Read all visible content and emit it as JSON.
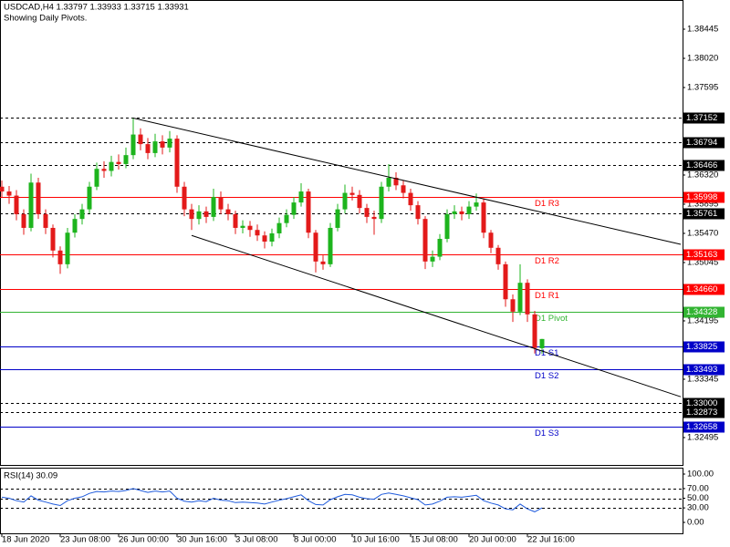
{
  "chart_data": [
    {
      "type": "candlestick",
      "title": "USDCAD,H4  1.33797 1.33933 1.33715 1.33931",
      "subtitle": "Showing Daily Pivots.",
      "categories": [
        "18 Jun 2020",
        null,
        null,
        null,
        null,
        null,
        null,
        null,
        "23 Jun 08:00",
        null,
        null,
        null,
        null,
        null,
        null,
        null,
        "26 Jun 00:00",
        null,
        null,
        null,
        null,
        null,
        null,
        null,
        "30 Jun 16:00",
        null,
        null,
        null,
        null,
        null,
        null,
        null,
        "3 Jul 08:00",
        null,
        null,
        null,
        null,
        null,
        null,
        null,
        "8 Jul 00:00",
        null,
        null,
        null,
        null,
        null,
        null,
        null,
        "10 Jul 16:00",
        null,
        null,
        null,
        null,
        null,
        null,
        null,
        "15 Jul 08:00",
        null,
        null,
        null,
        null,
        null,
        null,
        null,
        "20 Jul 00:00",
        null,
        null,
        null,
        null,
        null,
        null,
        null,
        "22 Jul 16:00",
        null,
        null
      ],
      "open": [
        1.3615,
        1.3608,
        1.3602,
        1.3575,
        1.3555,
        1.3621,
        1.3575,
        1.3555,
        1.3522,
        1.3502,
        1.3548,
        1.3568,
        1.3582,
        1.3615,
        1.3641,
        1.3638,
        1.3651,
        1.3648,
        1.3661,
        1.3691,
        1.3677,
        1.3664,
        1.3681,
        1.3672,
        1.3685,
        1.3615,
        1.3582,
        1.3568,
        1.3579,
        1.3571,
        1.36,
        1.3582,
        1.3575,
        1.3555,
        1.3558,
        1.3552,
        1.3544,
        1.3535,
        1.3547,
        1.3562,
        1.3574,
        1.3592,
        1.3608,
        1.3548,
        1.3506,
        1.3502,
        1.3555,
        1.3582,
        1.3606,
        1.3603,
        1.3584,
        1.3571,
        1.3568,
        1.3615,
        1.3628,
        1.3617,
        1.3606,
        1.3588,
        1.3568,
        1.3506,
        1.3513,
        1.3539,
        1.3575,
        1.3579,
        1.3575,
        1.3586,
        1.3592,
        1.3548,
        1.3526,
        1.3502,
        1.3451,
        1.3433,
        1.3475,
        1.3429,
        1.33797
      ],
      "high": [
        1.3624,
        1.3616,
        1.361,
        1.3582,
        1.3634,
        1.3628,
        1.3582,
        1.356,
        1.3528,
        1.3555,
        1.3575,
        1.359,
        1.3622,
        1.365,
        1.3652,
        1.366,
        1.3662,
        1.3672,
        1.3715,
        1.37,
        1.3686,
        1.3692,
        1.369,
        1.3696,
        1.369,
        1.3622,
        1.359,
        1.3588,
        1.3586,
        1.3612,
        1.3608,
        1.359,
        1.358,
        1.3566,
        1.3565,
        1.356,
        1.355,
        1.3554,
        1.357,
        1.3582,
        1.36,
        1.362,
        1.3612,
        1.3552,
        1.3515,
        1.3562,
        1.359,
        1.3618,
        1.3615,
        1.361,
        1.359,
        1.358,
        1.3622,
        1.3648,
        1.3636,
        1.3624,
        1.3612,
        1.3594,
        1.3572,
        1.3522,
        1.3546,
        1.3582,
        1.3588,
        1.3586,
        1.3594,
        1.3605,
        1.3598,
        1.3552,
        1.353,
        1.3506,
        1.3458,
        1.3502,
        1.348,
        1.3434,
        1.33933
      ],
      "low": [
        1.36,
        1.359,
        1.3566,
        1.3545,
        1.355,
        1.3568,
        1.3546,
        1.3512,
        1.3488,
        1.3496,
        1.3541,
        1.356,
        1.3576,
        1.361,
        1.3628,
        1.363,
        1.364,
        1.3642,
        1.3655,
        1.3668,
        1.3655,
        1.3658,
        1.3662,
        1.3665,
        1.3606,
        1.3572,
        1.3552,
        1.356,
        1.3562,
        1.3565,
        1.3575,
        1.3566,
        1.3546,
        1.3547,
        1.3542,
        1.3536,
        1.3525,
        1.3528,
        1.354,
        1.3556,
        1.3568,
        1.3586,
        1.354,
        1.349,
        1.3494,
        1.3498,
        1.355,
        1.3576,
        1.3595,
        1.3576,
        1.3562,
        1.3545,
        1.3562,
        1.3608,
        1.361,
        1.3598,
        1.358,
        1.356,
        1.3495,
        1.3498,
        1.3508,
        1.3534,
        1.3568,
        1.3566,
        1.3568,
        1.358,
        1.354,
        1.3518,
        1.3494,
        1.344,
        1.3418,
        1.3428,
        1.3418,
        1.3372,
        1.33715
      ],
      "close": [
        1.3608,
        1.3602,
        1.3575,
        1.3555,
        1.3621,
        1.3575,
        1.3555,
        1.3522,
        1.3502,
        1.3548,
        1.3568,
        1.3582,
        1.3615,
        1.3641,
        1.3638,
        1.3651,
        1.3648,
        1.3661,
        1.3691,
        1.3677,
        1.3664,
        1.3681,
        1.3672,
        1.3685,
        1.3615,
        1.3582,
        1.3568,
        1.3579,
        1.3571,
        1.36,
        1.3582,
        1.3575,
        1.3555,
        1.3558,
        1.3552,
        1.3544,
        1.3535,
        1.3547,
        1.3562,
        1.3574,
        1.3592,
        1.3608,
        1.3548,
        1.3506,
        1.3502,
        1.3555,
        1.3582,
        1.3606,
        1.3603,
        1.3584,
        1.3571,
        1.3568,
        1.3615,
        1.3628,
        1.3617,
        1.3606,
        1.3588,
        1.3568,
        1.3506,
        1.3513,
        1.3539,
        1.3575,
        1.3579,
        1.3575,
        1.3586,
        1.3592,
        1.3548,
        1.3526,
        1.3502,
        1.3451,
        1.3433,
        1.3475,
        1.3429,
        1.338,
        1.33931
      ],
      "up_color": "#1db41d",
      "down_color": "#e31a1a",
      "xlim": [
        -0.25,
        93.25
      ],
      "ylim": [
        1.32096,
        1.3887
      ],
      "yticks": [
        1.38445,
        {
          "value": 1.3802,
          "label": "1.38020"
        },
        1.37595,
        {
          "value": 1.3632,
          "label": "1.36320"
        },
        1.35895,
        {
          "value": 1.3547,
          "label": "1.35470"
        },
        1.35045,
        1.34195,
        1.33345,
        1.32495
      ],
      "levels": [
        {
          "value": 1.37152,
          "color": "#000000",
          "style": "dashed"
        },
        {
          "value": 1.36794,
          "color": "#000000",
          "style": "dashed"
        },
        {
          "value": 1.36466,
          "color": "#000000",
          "style": "dashed"
        },
        {
          "value": 1.35998,
          "name": "D1 R3",
          "color": "#ff0000",
          "style": "solid"
        },
        {
          "value": 1.35761,
          "color": "#000000",
          "style": "dashed"
        },
        {
          "value": 1.35163,
          "name": "D1 R2",
          "color": "#ff0000",
          "style": "solid"
        },
        {
          "value": 1.3466,
          "label": "1.34660",
          "name": "D1 R1",
          "color": "#ff0000",
          "style": "solid"
        },
        {
          "value": 1.34328,
          "name": "D1 Pivot",
          "color": "#32b432",
          "style": "solid"
        },
        {
          "value": 1.33825,
          "name": "D1 S1",
          "color": "#0000c8",
          "style": "solid"
        },
        {
          "value": 1.33493,
          "name": "D1 S2",
          "color": "#0000c8",
          "style": "solid"
        },
        {
          "value": 1.33,
          "label": "1.33000",
          "color": "#000000",
          "style": "dashed"
        },
        {
          "value": 1.32873,
          "color": "#000000",
          "style": "dashed"
        },
        {
          "value": 1.32658,
          "name": "D1 S3",
          "color": "#0000c8",
          "style": "solid"
        }
      ],
      "trendlines": [
        {
          "x": [
            18,
            93
          ],
          "y": [
            1.3715,
            1.3531
          ]
        },
        {
          "x": [
            26,
            93
          ],
          "y": [
            1.3544,
            1.3309
          ]
        }
      ]
    },
    {
      "type": "line",
      "title": "RSI(14) 30.09",
      "values": [
        52,
        50,
        45,
        42,
        55,
        46,
        42,
        38,
        35,
        45,
        50,
        53,
        60,
        64,
        63,
        65,
        64,
        66,
        70,
        66,
        62,
        65,
        63,
        65,
        50,
        44,
        42,
        45,
        43,
        50,
        46,
        45,
        41,
        42,
        41,
        40,
        38,
        42,
        46,
        49,
        53,
        57,
        45,
        37,
        36,
        47,
        53,
        58,
        57,
        52,
        49,
        48,
        58,
        61,
        58,
        55,
        51,
        47,
        36,
        38,
        44,
        52,
        53,
        52,
        54,
        56,
        45,
        40,
        36,
        28,
        26,
        38,
        28,
        22,
        30.09
      ],
      "color": "#1e5adc",
      "xlim": [
        -0.25,
        93.25
      ],
      "ylim": [
        -22.6,
        113.2
      ],
      "yticks": [
        {
          "value": 100,
          "label": "100.00"
        },
        {
          "value": 70,
          "label": "70.00"
        },
        {
          "value": 50,
          "label": "50.00"
        },
        {
          "value": 30,
          "label": "30.00"
        },
        {
          "value": 0,
          "label": "0.00"
        }
      ],
      "levels": [
        70,
        50,
        30
      ]
    }
  ]
}
